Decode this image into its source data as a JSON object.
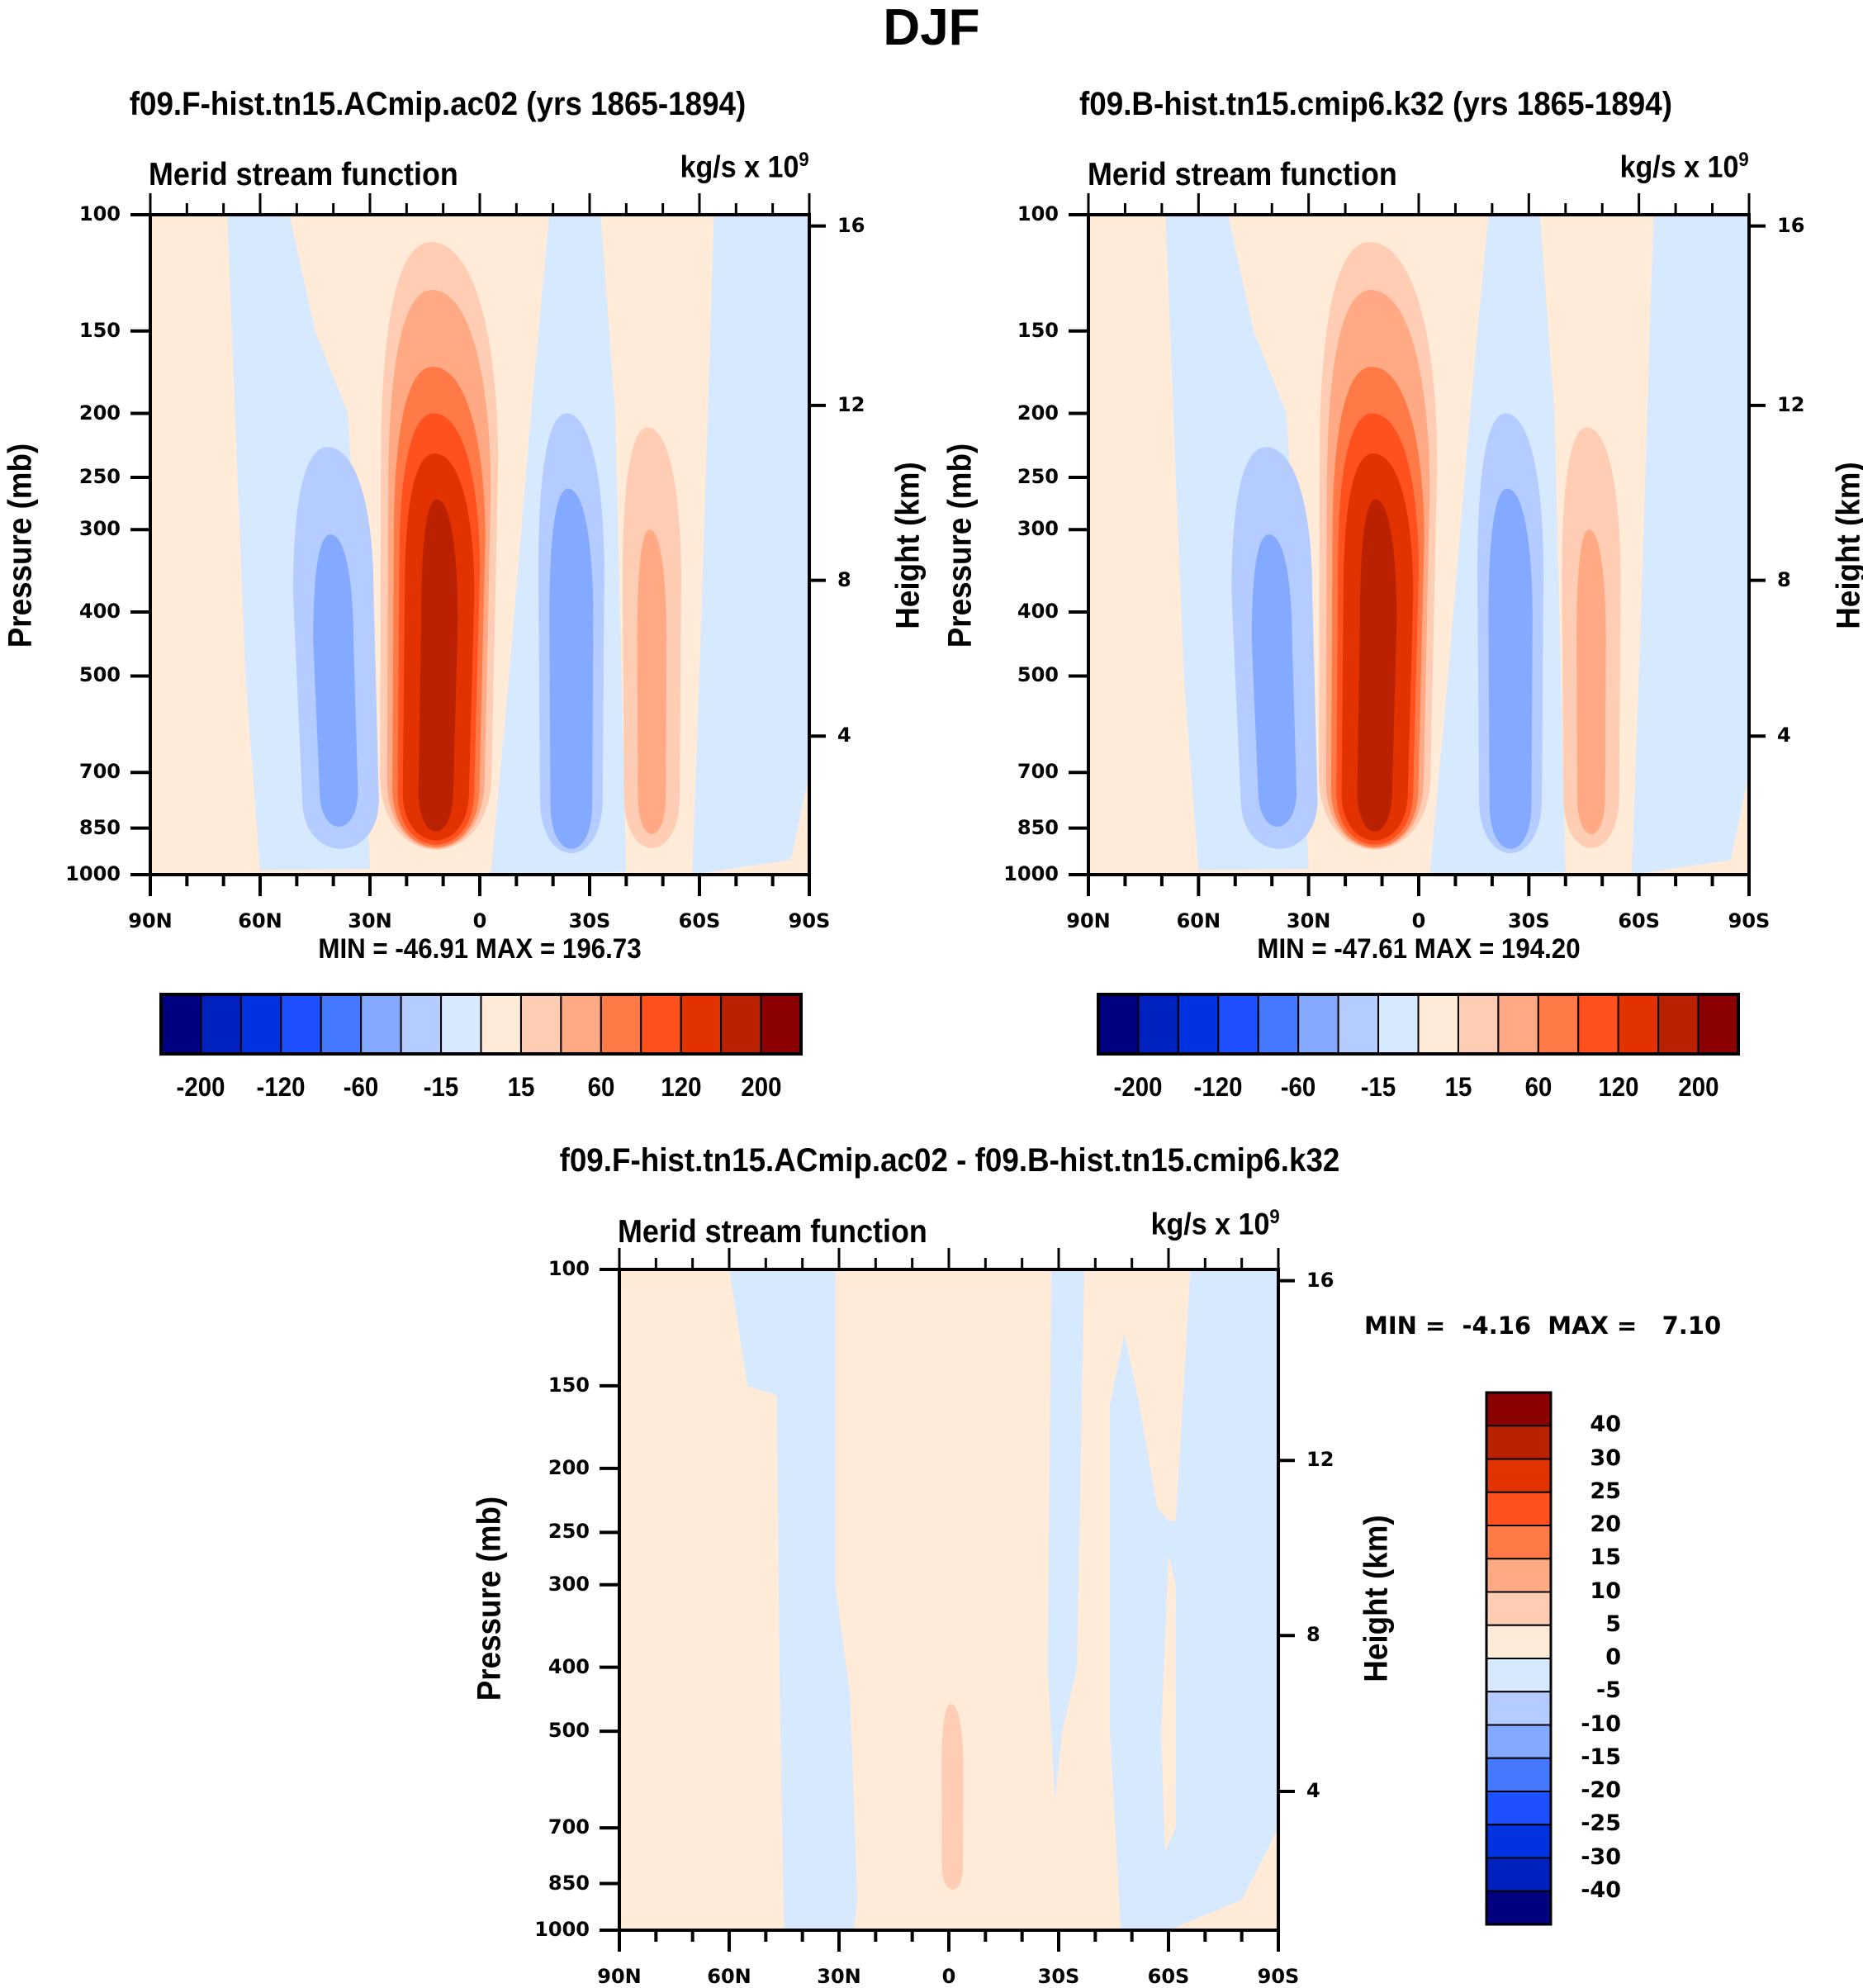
{
  "figure": {
    "title": "DJF"
  },
  "panels": [
    {
      "id": "ctrl",
      "title": "f09.F-hist.tn15.ACmip.ac02 (yrs 1865-1894)",
      "var_title": "Merid stream function",
      "units_base": "kg/s x 10",
      "units_exp": "9",
      "ylabel": "Pressure (mb)",
      "ylabel_right": "Height (km)",
      "minmax": "MIN = -46.91   MAX = 196.73"
    },
    {
      "id": "case",
      "title": "f09.B-hist.tn15.cmip6.k32 (yrs 1865-1894)",
      "var_title": "Merid stream function",
      "units_base": "kg/s x 10",
      "units_exp": "9",
      "ylabel": "Pressure (mb)",
      "ylabel_right": "Height (km)",
      "minmax": "MIN = -47.61   MAX = 194.20"
    },
    {
      "id": "diff",
      "title": "f09.F-hist.tn15.ACmip.ac02 - f09.B-hist.tn15.cmip6.k32",
      "var_title": "Merid stream function",
      "units_base": "kg/s x 10",
      "units_exp": "9",
      "ylabel": "Pressure (mb)",
      "ylabel_right": "Height (km)",
      "minmax": "MIN =  -4.16  MAX =   7.10"
    }
  ],
  "axes": {
    "x_ticks": [
      "90N",
      "60N",
      "30N",
      "0",
      "30S",
      "60S",
      "90S"
    ],
    "y_ticks": [
      "100",
      "150",
      "200",
      "250",
      "300",
      "400",
      "500",
      "700",
      "850",
      "1000"
    ],
    "y_right_ticks": [
      "16",
      "12",
      "8",
      "4"
    ]
  },
  "colorbars": {
    "main": {
      "colors": [
        "#000080",
        "#0021be",
        "#0032e1",
        "#1e50ff",
        "#4479ff",
        "#84aaff",
        "#b4ccff",
        "#d6e9ff",
        "#ffebd8",
        "#ffccb4",
        "#ffaa84",
        "#ff7a46",
        "#ff501e",
        "#e13200",
        "#ba2100",
        "#8b0000"
      ],
      "labels": [
        "-200",
        "-120",
        "-60",
        "-15",
        "15",
        "60",
        "120",
        "200"
      ]
    },
    "diff": {
      "colors": [
        "#000080",
        "#0021be",
        "#0032e1",
        "#1e50ff",
        "#4479ff",
        "#84aaff",
        "#b4ccff",
        "#d6e9ff",
        "#ffebd8",
        "#ffccb4",
        "#ffaa84",
        "#ff7a46",
        "#ff501e",
        "#e13200",
        "#ba2100",
        "#8b0000"
      ],
      "labels": [
        "40",
        "30",
        "25",
        "20",
        "15",
        "10",
        "5",
        "0",
        "-5",
        "-10",
        "-15",
        "-20",
        "-25",
        "-30",
        "-40"
      ]
    }
  },
  "chart_data": [
    {
      "type": "heatmap",
      "title": "f09.F-hist.tn15.ACmip.ac02 (yrs 1865-1894)",
      "subtitle": "Merid stream function (kg/s x 10^9)",
      "xlabel": "",
      "ylabel": "Pressure (mb)",
      "ylabel_right": "Height (km)",
      "x_range": [
        "90N",
        "90S"
      ],
      "ylim": [
        1000,
        100
      ],
      "yscale": "log",
      "min": -46.91,
      "max": 196.73,
      "features": [
        {
          "name": "nh-hadley-cell",
          "sign": "positive",
          "lat_center": 12,
          "p_top": 120,
          "p_bottom": 990,
          "peak_level": 200,
          "levels_filled": [
            15,
            40,
            60,
            80,
            120,
            160
          ]
        },
        {
          "name": "nh-ferrel-cell",
          "sign": "negative",
          "lat_center": 40,
          "p_top": 230,
          "p_bottom": 960,
          "peak_level": -40,
          "levels_filled": [
            -15,
            -40
          ]
        },
        {
          "name": "sh-hadley-cell",
          "sign": "negative",
          "lat_center": -25,
          "p_top": 200,
          "p_bottom": 980,
          "peak_level": -40,
          "levels_filled": [
            -15,
            -40
          ]
        },
        {
          "name": "sh-ferrel-cell",
          "sign": "positive",
          "lat_center": -47,
          "p_top": 220,
          "p_bottom": 960,
          "peak_level": 40,
          "levels_filled": [
            15,
            40
          ]
        }
      ]
    },
    {
      "type": "heatmap",
      "title": "f09.B-hist.tn15.cmip6.k32 (yrs 1865-1894)",
      "subtitle": "Merid stream function (kg/s x 10^9)",
      "xlabel": "",
      "ylabel": "Pressure (mb)",
      "ylabel_right": "Height (km)",
      "x_range": [
        "90N",
        "90S"
      ],
      "ylim": [
        1000,
        100
      ],
      "yscale": "log",
      "min": -47.61,
      "max": 194.2,
      "features": [
        {
          "name": "nh-hadley-cell",
          "sign": "positive",
          "lat_center": 12,
          "p_top": 120,
          "p_bottom": 990,
          "peak_level": 200,
          "levels_filled": [
            15,
            40,
            60,
            80,
            120,
            160
          ]
        },
        {
          "name": "nh-ferrel-cell",
          "sign": "negative",
          "lat_center": 40,
          "p_top": 240,
          "p_bottom": 960,
          "peak_level": -40,
          "levels_filled": [
            -15,
            -40
          ]
        },
        {
          "name": "sh-hadley-cell",
          "sign": "negative",
          "lat_center": -25,
          "p_top": 200,
          "p_bottom": 980,
          "peak_level": -40,
          "levels_filled": [
            -15,
            -40
          ]
        },
        {
          "name": "sh-ferrel-cell",
          "sign": "positive",
          "lat_center": -47,
          "p_top": 220,
          "p_bottom": 960,
          "peak_level": 40,
          "levels_filled": [
            15,
            40
          ]
        }
      ]
    },
    {
      "type": "heatmap",
      "title": "f09.F-hist.tn15.ACmip.ac02 - f09.B-hist.tn15.cmip6.k32",
      "subtitle": "Merid stream function (kg/s x 10^9)",
      "xlabel": "",
      "ylabel": "Pressure (mb)",
      "ylabel_right": "Height (km)",
      "x_range": [
        "90N",
        "90S"
      ],
      "ylim": [
        1000,
        100
      ],
      "yscale": "log",
      "min": -4.16,
      "max": 7.1,
      "features": [
        {
          "name": "neg-band-nh-midlat",
          "sign": "negative",
          "lat_from": 60,
          "lat_to": 32,
          "levels_filled": [
            -5
          ]
        },
        {
          "name": "neg-band-sh-subtrop",
          "sign": "negative",
          "lat_from": -28,
          "lat_to": -36,
          "levels_filled": [
            -5
          ]
        },
        {
          "name": "neg-band-sh-highlat",
          "sign": "negative",
          "lat_from": -45,
          "lat_to": -90,
          "levels_filled": [
            -5
          ]
        },
        {
          "name": "equatorial-positive",
          "sign": "positive",
          "lat_center": 0,
          "p_top": 450,
          "p_bottom": 900,
          "levels_filled": [
            5
          ]
        }
      ]
    }
  ]
}
